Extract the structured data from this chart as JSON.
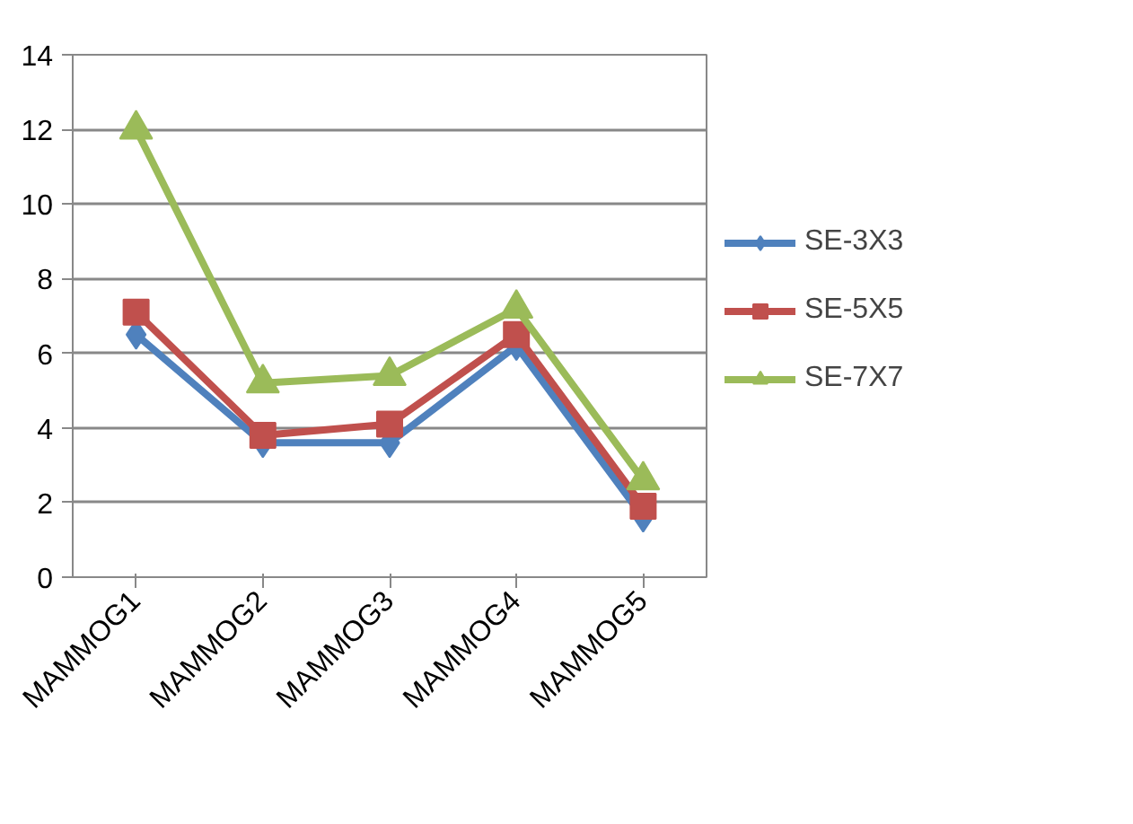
{
  "chart_data": {
    "type": "line",
    "categories": [
      "MAMMOG1",
      "MAMMOG2",
      "MAMMOG3",
      "MAMMOG4",
      "MAMMOG5"
    ],
    "series": [
      {
        "name": "SE-3X3",
        "color": "#4f81bd",
        "marker": "diamond",
        "values": [
          6.5,
          3.6,
          3.6,
          6.2,
          1.6
        ]
      },
      {
        "name": "SE-5X5",
        "color": "#c0504d",
        "marker": "square",
        "values": [
          7.1,
          3.8,
          4.1,
          6.5,
          1.9
        ]
      },
      {
        "name": "SE-7X7",
        "color": "#9bbb59",
        "marker": "triangle",
        "values": [
          12.0,
          5.2,
          5.4,
          7.2,
          2.6
        ]
      }
    ],
    "ylim": [
      0,
      14
    ],
    "yticks": [
      0,
      2,
      4,
      6,
      8,
      10,
      12,
      14
    ],
    "grid": "y",
    "legend": "right",
    "line_style": "solid"
  }
}
